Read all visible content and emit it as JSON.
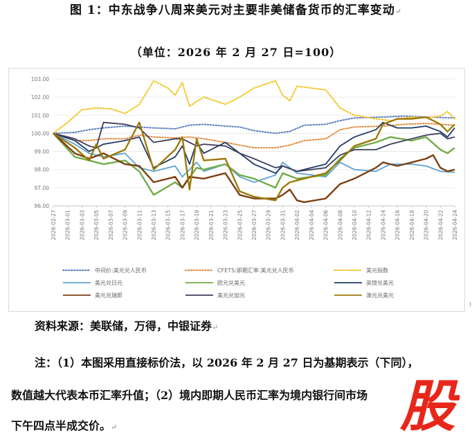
{
  "title": "图 1：中东战争八周来美元对主要非美储备货币的汇率变动",
  "subtitle": "（单位：2026 年 2 月 27 日=100）",
  "source": "资料来源：美联储，万得，中银证券",
  "notes": {
    "line1": "注：（1）本图采用直接标价法，以 2026 年 2 月 27 日为基期表示（下同），",
    "line2": "数值越大代表本币汇率升值；（2）境内即期人民币汇率为境内银行间市场",
    "line3": "下午四点半成交价。"
  },
  "watermark": {
    "glyph": "股",
    "color": "#e8271b"
  },
  "chart_data": {
    "type": "line",
    "ylim": [
      96,
      103
    ],
    "yticks": [
      "96.00",
      "97.00",
      "98.00",
      "99.00",
      "100.00",
      "101.00",
      "102.00",
      "103.00"
    ],
    "x_tick_labels": [
      "2026-02-27",
      "2026-03-01",
      "2026-03-03",
      "2026-03-05",
      "2026-03-07",
      "2026-03-09",
      "2026-03-11",
      "2026-03-13",
      "2026-03-15",
      "2026-03-17",
      "2026-03-19",
      "2026-03-21",
      "2026-03-23",
      "2026-03-25",
      "2026-03-27",
      "2026-03-29",
      "2026-03-31",
      "2026-04-02",
      "2026-04-04",
      "2026-04-06",
      "2026-04-08",
      "2026-04-10",
      "2026-04-12",
      "2026-04-14",
      "2026-04-16",
      "2026-04-18",
      "2026-04-20",
      "2026-04-22",
      "2026-04-24"
    ],
    "x_start": "2026-02-27",
    "x_end": "2026-04-24",
    "legend_position": "bottom",
    "series": [
      {
        "name": "中间价:美元兑人民币",
        "color": "#5b7fbf",
        "dash": "dot",
        "points": [
          [
            "2026-02-27",
            100
          ],
          [
            "2026-03-02",
            100.05
          ],
          [
            "2026-03-04",
            100.2
          ],
          [
            "2026-03-06",
            100.3
          ],
          [
            "2026-03-09",
            100.4
          ],
          [
            "2026-03-11",
            100.35
          ],
          [
            "2026-03-13",
            100.3
          ],
          [
            "2026-03-16",
            100.25
          ],
          [
            "2026-03-18",
            100.45
          ],
          [
            "2026-03-20",
            100.5
          ],
          [
            "2026-03-23",
            100.4
          ],
          [
            "2026-03-25",
            100.35
          ],
          [
            "2026-03-27",
            100.15
          ],
          [
            "2026-03-30",
            100.0
          ],
          [
            "2026-04-01",
            100.1
          ],
          [
            "2026-04-03",
            100.45
          ],
          [
            "2026-04-06",
            100.5
          ],
          [
            "2026-04-08",
            100.7
          ],
          [
            "2026-04-10",
            100.85
          ],
          [
            "2026-04-14",
            100.9
          ],
          [
            "2026-04-17",
            100.95
          ],
          [
            "2026-04-20",
            100.9
          ],
          [
            "2026-04-24",
            100.85
          ]
        ]
      },
      {
        "name": "CFETS:即期汇率:美元兑人民币",
        "color": "#e08a3c",
        "dash": "dot",
        "points": [
          [
            "2026-02-27",
            100
          ],
          [
            "2026-03-02",
            99.6
          ],
          [
            "2026-03-04",
            99.6
          ],
          [
            "2026-03-06",
            99.7
          ],
          [
            "2026-03-09",
            99.7
          ],
          [
            "2026-03-11",
            99.9
          ],
          [
            "2026-03-13",
            99.8
          ],
          [
            "2026-03-16",
            99.75
          ],
          [
            "2026-03-18",
            99.8
          ],
          [
            "2026-03-20",
            99.7
          ],
          [
            "2026-03-23",
            99.5
          ],
          [
            "2026-03-25",
            99.35
          ],
          [
            "2026-03-27",
            99.2
          ],
          [
            "2026-03-30",
            99.2
          ],
          [
            "2026-04-01",
            99.35
          ],
          [
            "2026-04-03",
            99.6
          ],
          [
            "2026-04-06",
            99.7
          ],
          [
            "2026-04-08",
            100.2
          ],
          [
            "2026-04-10",
            100.35
          ],
          [
            "2026-04-14",
            100.4
          ],
          [
            "2026-04-17",
            100.5
          ],
          [
            "2026-04-20",
            100.55
          ],
          [
            "2026-04-24",
            100.45
          ]
        ]
      },
      {
        "name": "美元指数",
        "color": "#f2c31a",
        "dash": "dot",
        "points": [
          [
            "2026-02-27",
            100
          ],
          [
            "2026-03-01",
            100.6
          ],
          [
            "2026-03-03",
            101.3
          ],
          [
            "2026-03-05",
            101.4
          ],
          [
            "2026-03-07",
            101.35
          ],
          [
            "2026-03-09",
            101.1
          ],
          [
            "2026-03-11",
            101.6
          ],
          [
            "2026-03-13",
            102.9
          ],
          [
            "2026-03-15",
            102.5
          ],
          [
            "2026-03-16",
            102.1
          ],
          [
            "2026-03-17",
            102.8
          ],
          [
            "2026-03-18",
            101.5
          ],
          [
            "2026-03-20",
            102.0
          ],
          [
            "2026-03-23",
            101.6
          ],
          [
            "2026-03-25",
            102.0
          ],
          [
            "2026-03-27",
            102.5
          ],
          [
            "2026-03-30",
            102.9
          ],
          [
            "2026-03-31",
            102.1
          ],
          [
            "2026-04-01",
            101.8
          ],
          [
            "2026-04-02",
            102.6
          ],
          [
            "2026-04-06",
            102.4
          ],
          [
            "2026-04-08",
            101.4
          ],
          [
            "2026-04-10",
            101.0
          ],
          [
            "2026-04-13",
            100.8
          ],
          [
            "2026-04-15",
            100.7
          ],
          [
            "2026-04-18",
            100.9
          ],
          [
            "2026-04-20",
            100.85
          ],
          [
            "2026-04-22",
            100.95
          ],
          [
            "2026-04-23",
            101.2
          ],
          [
            "2026-04-24",
            100.8
          ]
        ]
      },
      {
        "name": "美元兑日元",
        "color": "#5ba3d6",
        "dash": "solid",
        "points": [
          [
            "2026-02-27",
            100
          ],
          [
            "2026-03-02",
            99.4
          ],
          [
            "2026-03-04",
            98.9
          ],
          [
            "2026-03-06",
            98.7
          ],
          [
            "2026-03-09",
            98.9
          ],
          [
            "2026-03-11",
            98.1
          ],
          [
            "2026-03-13",
            97.9
          ],
          [
            "2026-03-16",
            98.2
          ],
          [
            "2026-03-17",
            97.6
          ],
          [
            "2026-03-19",
            98.4
          ],
          [
            "2026-03-20",
            97.9
          ],
          [
            "2026-03-23",
            98.3
          ],
          [
            "2026-03-25",
            97.6
          ],
          [
            "2026-03-27",
            97.3
          ],
          [
            "2026-03-30",
            97.7
          ],
          [
            "2026-03-31",
            98.4
          ],
          [
            "2026-04-02",
            97.8
          ],
          [
            "2026-04-06",
            97.6
          ],
          [
            "2026-04-08",
            98.4
          ],
          [
            "2026-04-10",
            98.0
          ],
          [
            "2026-04-13",
            97.9
          ],
          [
            "2026-04-15",
            98.3
          ],
          [
            "2026-04-18",
            98.3
          ],
          [
            "2026-04-20",
            98.2
          ],
          [
            "2026-04-22",
            97.9
          ],
          [
            "2026-04-24",
            97.85
          ]
        ]
      },
      {
        "name": "欧元兑美元",
        "color": "#70ad47",
        "dash": "solid",
        "points": [
          [
            "2026-02-27",
            100
          ],
          [
            "2026-03-02",
            98.7
          ],
          [
            "2026-03-04",
            98.5
          ],
          [
            "2026-03-06",
            98.3
          ],
          [
            "2026-03-09",
            98.5
          ],
          [
            "2026-03-11",
            97.9
          ],
          [
            "2026-03-13",
            96.6
          ],
          [
            "2026-03-16",
            97.3
          ],
          [
            "2026-03-17",
            97.0
          ],
          [
            "2026-03-19",
            98.1
          ],
          [
            "2026-03-20",
            98.0
          ],
          [
            "2026-03-23",
            98.3
          ],
          [
            "2026-03-25",
            97.7
          ],
          [
            "2026-03-27",
            97.5
          ],
          [
            "2026-03-30",
            97.0
          ],
          [
            "2026-03-31",
            97.8
          ],
          [
            "2026-04-02",
            97.5
          ],
          [
            "2026-04-06",
            97.7
          ],
          [
            "2026-04-08",
            98.6
          ],
          [
            "2026-04-10",
            99.2
          ],
          [
            "2026-04-13",
            99.5
          ],
          [
            "2026-04-15",
            99.8
          ],
          [
            "2026-04-18",
            99.6
          ],
          [
            "2026-04-20",
            99.8
          ],
          [
            "2026-04-22",
            99.1
          ],
          [
            "2026-04-23",
            98.9
          ],
          [
            "2026-04-24",
            99.2
          ]
        ]
      },
      {
        "name": "英镑兑美元",
        "color": "#1f3864",
        "dash": "solid",
        "points": [
          [
            "2026-02-27",
            100
          ],
          [
            "2026-03-02",
            99.6
          ],
          [
            "2026-03-04",
            99.0
          ],
          [
            "2026-03-06",
            99.4
          ],
          [
            "2026-03-09",
            99.6
          ],
          [
            "2026-03-11",
            99.8
          ],
          [
            "2026-03-13",
            98.1
          ],
          [
            "2026-03-16",
            98.7
          ],
          [
            "2026-03-17",
            99.3
          ],
          [
            "2026-03-18",
            98.3
          ],
          [
            "2026-03-19",
            99.5
          ],
          [
            "2026-03-20",
            98.9
          ],
          [
            "2026-03-23",
            99.5
          ],
          [
            "2026-03-25",
            98.9
          ],
          [
            "2026-03-27",
            98.3
          ],
          [
            "2026-03-30",
            97.8
          ],
          [
            "2026-03-31",
            98.2
          ],
          [
            "2026-04-02",
            97.9
          ],
          [
            "2026-04-06",
            98.3
          ],
          [
            "2026-04-08",
            99.3
          ],
          [
            "2026-04-10",
            99.8
          ],
          [
            "2026-04-13",
            100.2
          ],
          [
            "2026-04-14",
            100.6
          ],
          [
            "2026-04-16",
            100.3
          ],
          [
            "2026-04-18",
            100.3
          ],
          [
            "2026-04-20",
            100.4
          ],
          [
            "2026-04-22",
            100.1
          ],
          [
            "2026-04-23",
            99.8
          ],
          [
            "2026-04-24",
            100.3
          ]
        ]
      },
      {
        "name": "美元兑瑞郎",
        "color": "#7b3f12",
        "dash": "solid",
        "points": [
          [
            "2026-02-27",
            100
          ],
          [
            "2026-03-02",
            98.9
          ],
          [
            "2026-03-04",
            98.6
          ],
          [
            "2026-03-06",
            98.9
          ],
          [
            "2026-03-09",
            98.3
          ],
          [
            "2026-03-11",
            98.2
          ],
          [
            "2026-03-13",
            97.3
          ],
          [
            "2026-03-16",
            97.6
          ],
          [
            "2026-03-17",
            97.0
          ],
          [
            "2026-03-18",
            97.6
          ],
          [
            "2026-03-20",
            97.5
          ],
          [
            "2026-03-23",
            97.8
          ],
          [
            "2026-03-25",
            96.6
          ],
          [
            "2026-03-27",
            96.4
          ],
          [
            "2026-03-30",
            96.4
          ],
          [
            "2026-03-31",
            96.6
          ],
          [
            "2026-04-01",
            96.9
          ],
          [
            "2026-04-02",
            96.3
          ],
          [
            "2026-04-03",
            96.2
          ],
          [
            "2026-04-06",
            96.4
          ],
          [
            "2026-04-08",
            97.2
          ],
          [
            "2026-04-10",
            97.5
          ],
          [
            "2026-04-13",
            98.1
          ],
          [
            "2026-04-14",
            98.4
          ],
          [
            "2026-04-16",
            98.2
          ],
          [
            "2026-04-18",
            98.4
          ],
          [
            "2026-04-20",
            98.6
          ],
          [
            "2026-04-21",
            98.8
          ],
          [
            "2026-04-22",
            98.1
          ],
          [
            "2026-04-23",
            97.9
          ],
          [
            "2026-04-24",
            98.0
          ]
        ]
      },
      {
        "name": "美元兑加元",
        "color": "#3d3d5c",
        "dash": "solid",
        "points": [
          [
            "2026-02-27",
            100
          ],
          [
            "2026-03-02",
            99.7
          ],
          [
            "2026-03-04",
            99.3
          ],
          [
            "2026-03-05",
            99.2
          ],
          [
            "2026-03-06",
            100.6
          ],
          [
            "2026-03-09",
            100.5
          ],
          [
            "2026-03-11",
            100.3
          ],
          [
            "2026-03-13",
            99.5
          ],
          [
            "2026-03-16",
            99.7
          ],
          [
            "2026-03-17",
            99.7
          ],
          [
            "2026-03-19",
            99.3
          ],
          [
            "2026-03-20",
            99.4
          ],
          [
            "2026-03-23",
            99.3
          ],
          [
            "2026-03-25",
            98.9
          ],
          [
            "2026-03-27",
            98.6
          ],
          [
            "2026-03-30",
            98.1
          ],
          [
            "2026-03-31",
            98.2
          ],
          [
            "2026-04-02",
            97.9
          ],
          [
            "2026-04-06",
            98.1
          ],
          [
            "2026-04-08",
            98.8
          ],
          [
            "2026-04-10",
            99.1
          ],
          [
            "2026-04-13",
            99.1
          ],
          [
            "2026-04-15",
            99.4
          ],
          [
            "2026-04-18",
            99.7
          ],
          [
            "2026-04-20",
            99.9
          ],
          [
            "2026-04-22",
            100.0
          ],
          [
            "2026-04-23",
            99.7
          ],
          [
            "2026-04-24",
            99.8
          ]
        ]
      },
      {
        "name": "澳元兑美元",
        "color": "#9c7a0c",
        "dash": "solid",
        "points": [
          [
            "2026-02-27",
            100
          ],
          [
            "2026-03-02",
            99.2
          ],
          [
            "2026-03-04",
            98.5
          ],
          [
            "2026-03-05",
            99.4
          ],
          [
            "2026-03-06",
            98.6
          ],
          [
            "2026-03-09",
            99.1
          ],
          [
            "2026-03-11",
            100.6
          ],
          [
            "2026-03-13",
            98.0
          ],
          [
            "2026-03-16",
            99.1
          ],
          [
            "2026-03-17",
            99.8
          ],
          [
            "2026-03-18",
            96.9
          ],
          [
            "2026-03-19",
            99.7
          ],
          [
            "2026-03-20",
            98.5
          ],
          [
            "2026-03-23",
            98.6
          ],
          [
            "2026-03-25",
            96.8
          ],
          [
            "2026-03-27",
            96.5
          ],
          [
            "2026-03-30",
            96.3
          ],
          [
            "2026-03-31",
            97.0
          ],
          [
            "2026-04-01",
            97.3
          ],
          [
            "2026-04-02",
            97.4
          ],
          [
            "2026-04-06",
            97.8
          ],
          [
            "2026-04-08",
            98.5
          ],
          [
            "2026-04-10",
            99.3
          ],
          [
            "2026-04-13",
            99.7
          ],
          [
            "2026-04-14",
            100.5
          ],
          [
            "2026-04-16",
            100.8
          ],
          [
            "2026-04-18",
            100.8
          ],
          [
            "2026-04-20",
            100.9
          ],
          [
            "2026-04-22",
            100.5
          ],
          [
            "2026-04-23",
            100.1
          ],
          [
            "2026-04-24",
            100.5
          ]
        ]
      }
    ]
  }
}
